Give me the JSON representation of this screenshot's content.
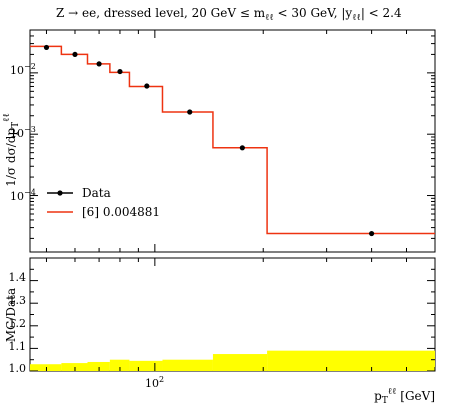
{
  "chart_data": [
    {
      "type": "line",
      "title": "Z → ee, dressed level, 20 GeV ≤ m_ℓℓ < 30 GeV, |y_ℓℓ| < 2.4",
      "xlabel": "p_T^ℓℓ [GeV]",
      "ylabel": "1/σ dσ/dp_T^ℓℓ",
      "xscale": "log",
      "yscale": "log",
      "xlim": [
        45,
        600
      ],
      "ylim": [
        1.2e-05,
        0.05
      ],
      "x_tick_labels": [
        "10^2"
      ],
      "y_tick_labels": [
        "10^-2",
        "10^-3",
        "10^-4"
      ],
      "legend": {
        "placement": "lower-left",
        "entries": [
          "Data",
          "[6] 0.004881"
        ]
      },
      "series": [
        {
          "name": "Data",
          "style": "points",
          "color": "#000000",
          "x": [
            50,
            60,
            70,
            80,
            95,
            125,
            175,
            400
          ],
          "y": [
            0.026,
            0.02,
            0.014,
            0.0105,
            0.0061,
            0.0023,
            0.0006,
            2.4e-05
          ]
        },
        {
          "name": "[6] 0.004881",
          "style": "histogram",
          "color": "#ee3311",
          "bin_edges": [
            45,
            55,
            65,
            75,
            85,
            105,
            145,
            205,
            600
          ],
          "values": [
            0.027,
            0.02,
            0.014,
            0.0102,
            0.006,
            0.0023,
            0.0006,
            2.4e-05
          ]
        }
      ]
    },
    {
      "type": "area",
      "xlabel": "p_T^ℓℓ [GeV]",
      "ylabel": "MC/Data",
      "xscale": "log",
      "xlim": [
        45,
        600
      ],
      "ylim": [
        1.0,
        1.5
      ],
      "x_tick_labels": [
        "10^2"
      ],
      "y_tick_labels": [
        "1.0",
        "1.1",
        "1.2",
        "1.3",
        "1.4"
      ],
      "band_color": "#ffff00",
      "reference_line": 1.0,
      "bin_edges": [
        45,
        55,
        65,
        75,
        85,
        105,
        145,
        205,
        600
      ],
      "band_low": [
        1.0,
        1.0,
        1.0,
        1.0,
        1.0,
        1.0,
        1.0,
        1.0
      ],
      "band_high": [
        1.03,
        1.035,
        1.04,
        1.05,
        1.045,
        1.05,
        1.075,
        1.09
      ]
    }
  ],
  "texts": {
    "title": "Z → ee, dressed level, 20 GeV ≤ m",
    "title_m_sub": "ℓℓ",
    "title_mid": " < 30 GeV, |y",
    "title_y_sub": "ℓℓ",
    "title_end": "| < 2.4",
    "ylabel_main": "1/σ dσ/dp",
    "ylabel_sub": "T",
    "ylabel_sup": "ℓℓ",
    "ratio_ylabel": "MC/Data",
    "xlabel_main": "p",
    "xlabel_sub": "T",
    "xlabel_sup": "ℓℓ",
    "xlabel_unit": " [GeV]",
    "legend_data": "Data",
    "legend_mc": "[6] 0.004881",
    "xtick_main": "10",
    "xtick_exp": "2",
    "ytick_base": "10",
    "ytick_exp_1": "−2",
    "ytick_exp_2": "−3",
    "ytick_exp_3": "−4",
    "ratio_ticks": [
      "1.0",
      "1.1",
      "1.2",
      "1.3",
      "1.4"
    ]
  }
}
